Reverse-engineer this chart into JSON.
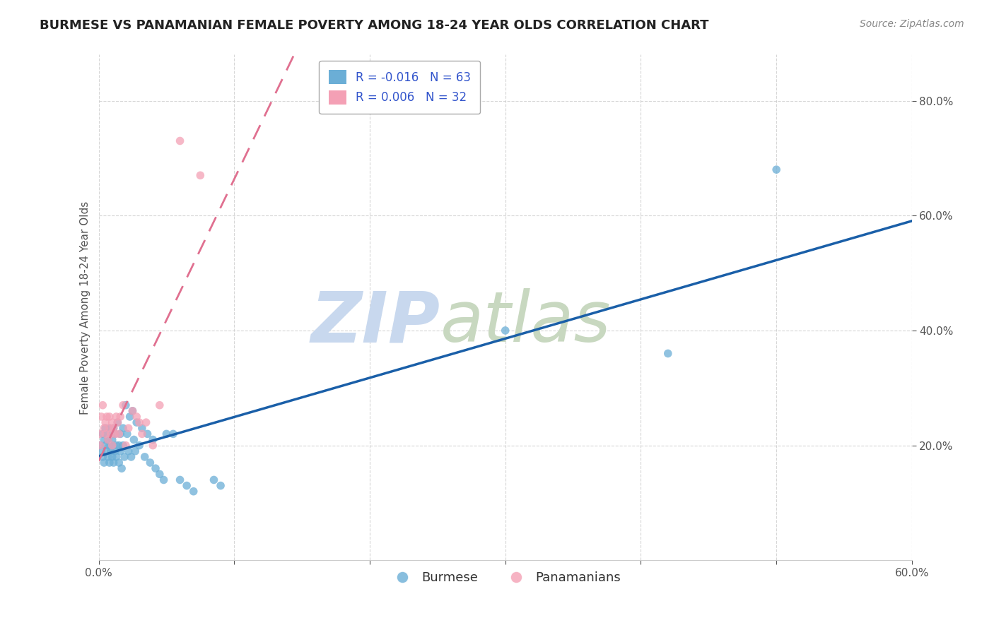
{
  "title": "BURMESE VS PANAMANIAN FEMALE POVERTY AMONG 18-24 YEAR OLDS CORRELATION CHART",
  "source": "Source: ZipAtlas.com",
  "ylabel": "Female Poverty Among 18-24 Year Olds",
  "xlim": [
    0.0,
    0.6
  ],
  "ylim": [
    0.0,
    0.88
  ],
  "yticks": [
    0.2,
    0.4,
    0.6,
    0.8
  ],
  "xticks": [
    0.0,
    0.1,
    0.2,
    0.3,
    0.4,
    0.5,
    0.6
  ],
  "burmese_color": "#6baed6",
  "panamanian_color": "#f4a0b5",
  "burmese_R": -0.016,
  "burmese_N": 63,
  "panamanian_R": 0.006,
  "panamanian_N": 32,
  "burmese_x": [
    0.001,
    0.002,
    0.003,
    0.003,
    0.004,
    0.004,
    0.005,
    0.005,
    0.006,
    0.006,
    0.007,
    0.007,
    0.008,
    0.008,
    0.008,
    0.009,
    0.009,
    0.01,
    0.01,
    0.01,
    0.011,
    0.011,
    0.012,
    0.012,
    0.013,
    0.013,
    0.014,
    0.015,
    0.015,
    0.016,
    0.016,
    0.017,
    0.018,
    0.018,
    0.019,
    0.02,
    0.021,
    0.022,
    0.023,
    0.024,
    0.025,
    0.026,
    0.027,
    0.028,
    0.03,
    0.032,
    0.034,
    0.036,
    0.038,
    0.04,
    0.042,
    0.045,
    0.048,
    0.05,
    0.055,
    0.06,
    0.065,
    0.07,
    0.085,
    0.09,
    0.3,
    0.42,
    0.5
  ],
  "burmese_y": [
    0.2,
    0.19,
    0.22,
    0.18,
    0.21,
    0.17,
    0.2,
    0.23,
    0.19,
    0.22,
    0.18,
    0.21,
    0.2,
    0.23,
    0.17,
    0.19,
    0.22,
    0.2,
    0.18,
    0.21,
    0.23,
    0.17,
    0.19,
    0.22,
    0.2,
    0.18,
    0.24,
    0.2,
    0.17,
    0.22,
    0.19,
    0.16,
    0.2,
    0.23,
    0.18,
    0.27,
    0.22,
    0.19,
    0.25,
    0.18,
    0.26,
    0.21,
    0.19,
    0.24,
    0.2,
    0.23,
    0.18,
    0.22,
    0.17,
    0.21,
    0.16,
    0.15,
    0.14,
    0.22,
    0.22,
    0.14,
    0.13,
    0.12,
    0.14,
    0.13,
    0.4,
    0.36,
    0.68
  ],
  "panamanian_x": [
    0.001,
    0.001,
    0.002,
    0.003,
    0.004,
    0.005,
    0.005,
    0.006,
    0.007,
    0.008,
    0.008,
    0.009,
    0.01,
    0.01,
    0.011,
    0.012,
    0.013,
    0.014,
    0.015,
    0.016,
    0.018,
    0.02,
    0.022,
    0.025,
    0.028,
    0.03,
    0.032,
    0.035,
    0.04,
    0.045,
    0.06,
    0.075
  ],
  "panamanian_y": [
    0.22,
    0.2,
    0.25,
    0.27,
    0.23,
    0.24,
    0.22,
    0.25,
    0.21,
    0.23,
    0.25,
    0.22,
    0.24,
    0.2,
    0.23,
    0.22,
    0.25,
    0.24,
    0.22,
    0.25,
    0.27,
    0.2,
    0.23,
    0.26,
    0.25,
    0.24,
    0.22,
    0.24,
    0.2,
    0.27,
    0.73,
    0.67
  ],
  "background_color": "#ffffff",
  "grid_color": "#cccccc",
  "title_fontsize": 13,
  "axis_label_fontsize": 11,
  "tick_fontsize": 11,
  "legend_fontsize": 12,
  "watermark_zip": "ZIP",
  "watermark_atlas": "atlas",
  "watermark_color_zip": "#c8d8ee",
  "watermark_color_atlas": "#c8d8c0",
  "marker_size": 70,
  "blue_trend_color": "#1a5fa8",
  "pink_trend_color": "#e07090"
}
